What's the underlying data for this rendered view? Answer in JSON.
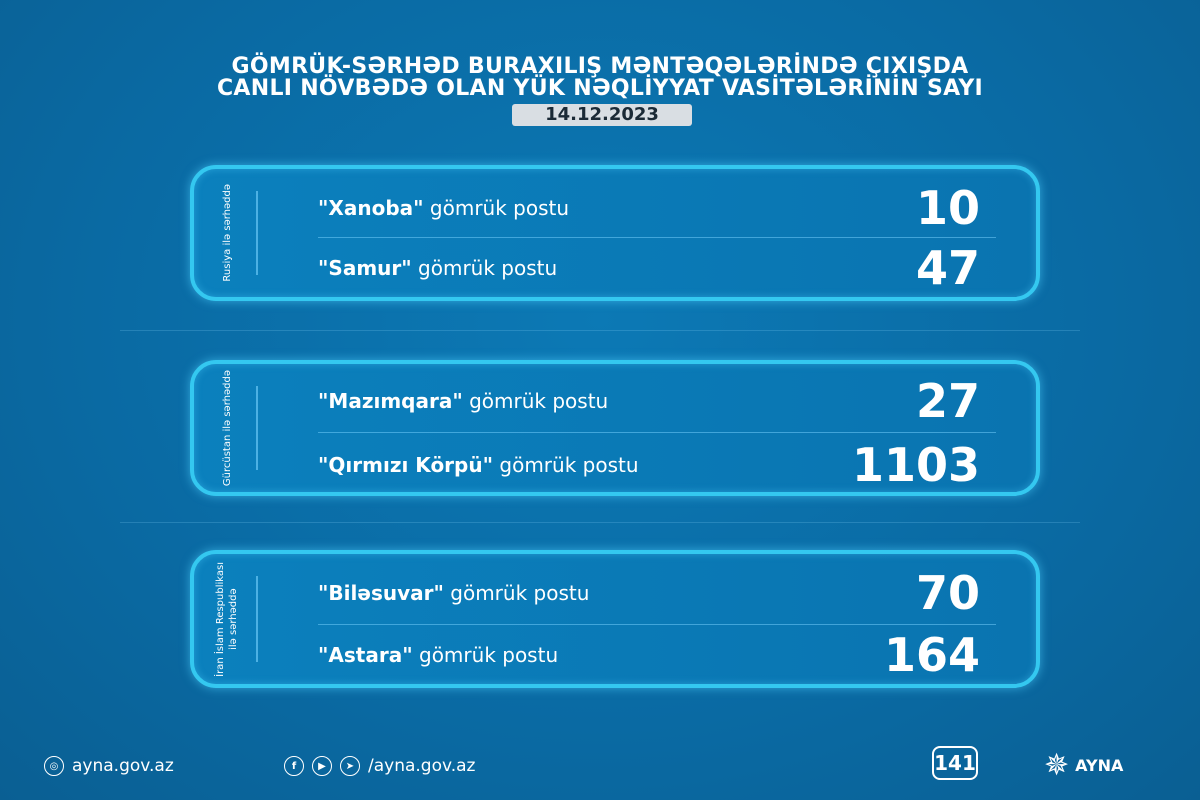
{
  "title": {
    "line1": "GÖMRÜK-SƏRHƏD BURAXILIŞ MƏNTƏQƏLƏRİNDƏ ÇIXIŞDA",
    "line2": "CANLI NÖVBƏDƏ OLAN YÜK NƏQLİYYAT VASİTƏLƏRİNİN SAYI",
    "date": "14.12.2023"
  },
  "groups": [
    {
      "label": "Rusiya ilə sərhəddə",
      "posts": [
        {
          "name": "\"Xanoba\"",
          "suffix": "gömrük postu",
          "value": "10"
        },
        {
          "name": "\"Samur\"",
          "suffix": "gömrük postu",
          "value": "47"
        }
      ]
    },
    {
      "label": "Gürcüstan ilə sərhəddə",
      "posts": [
        {
          "name": "\"Mazımqara\"",
          "suffix": "gömrük postu",
          "value": "27"
        },
        {
          "name": "\"Qırmızı Körpü\"",
          "suffix": "gömrük postu",
          "value": "1103"
        }
      ]
    },
    {
      "label": "İran İslam Respublikası\nilə sərhəddə",
      "posts": [
        {
          "name": "\"Biləsuvar\"",
          "suffix": "gömrük postu",
          "value": "70"
        },
        {
          "name": "\"Astara\"",
          "suffix": "gömrük postu",
          "value": "164"
        }
      ]
    }
  ],
  "footer": {
    "website": "ayna.gov.az",
    "social": "/ayna.gov.az",
    "hotline": "141",
    "brand": "AYNA"
  },
  "colors": {
    "background": "#0a6aa3",
    "box_border": "#34c8f0",
    "date_bg": "#d9dee3"
  }
}
